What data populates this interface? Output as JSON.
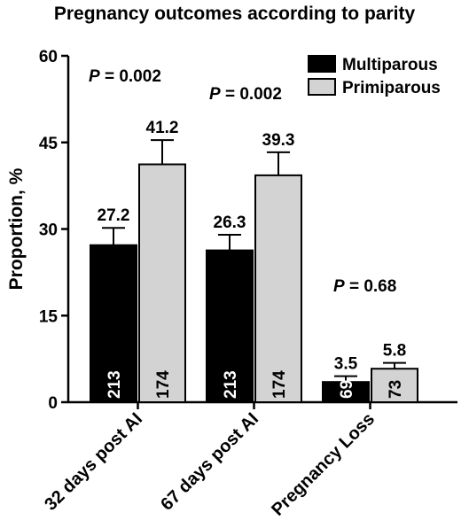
{
  "chart_data": {
    "type": "bar",
    "title": "Pregnancy outcomes according to parity",
    "ylabel": "Proportion, %",
    "ylim": [
      0,
      60
    ],
    "yticks": [
      0,
      15,
      30,
      45,
      60
    ],
    "categories": [
      "32 days post AI",
      "67 days post AI",
      "Pregnancy Loss"
    ],
    "series": [
      {
        "name": "Multiparous",
        "color": "#000000",
        "values": [
          27.2,
          26.3,
          3.5
        ],
        "errors": [
          3.0,
          2.7,
          1.0
        ],
        "value_labels": [
          "27.2",
          "26.3",
          "3.5"
        ],
        "n_labels": [
          "213",
          "213",
          "69"
        ]
      },
      {
        "name": "Primiparous",
        "color": "#d3d3d3",
        "values": [
          41.2,
          39.3,
          5.8
        ],
        "errors": [
          4.2,
          4.0,
          1.0
        ],
        "value_labels": [
          "41.2",
          "39.3",
          "5.8"
        ],
        "n_labels": [
          "174",
          "174",
          "73"
        ]
      }
    ],
    "pvalues": [
      "= 0.002",
      "= 0.002",
      "= 0.68"
    ],
    "p_symbol": "P",
    "legend_position": "top-right",
    "grid": false
  }
}
